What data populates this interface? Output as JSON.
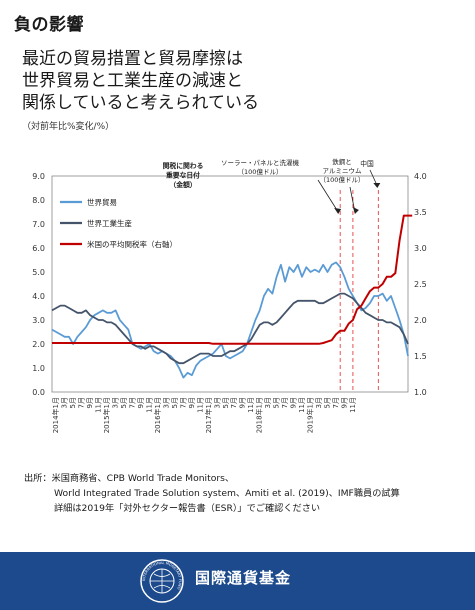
{
  "page": {
    "title": "負の影響",
    "headline": [
      "最近の貿易措置と貿易摩擦は",
      "世界貿易と工業生産の減速と",
      "関係していると考えられている"
    ],
    "unit_note": "（対前年比%変化/%）"
  },
  "source": {
    "lines": [
      "出所：米国商務省、CPB World Trade Monitors、",
      "World Integrated Trade Solution system、Amiti et al. (2019)、IMF職員の試算",
      "詳細は2019年「対外セクター報告書（ESR）」でご確認ください"
    ]
  },
  "footer": {
    "org_name": "国際通貨基金",
    "seal_text": "INTERNATIONAL MONETARY FUND"
  },
  "colors": {
    "trade": "#5b9bd5",
    "production": "#44546a",
    "tariff": "#c00000",
    "event_line": "#e34040",
    "footer_bg": "#1c4a8c"
  },
  "chart_data": {
    "type": "line",
    "x_ticks": [
      "2014年1月",
      "3月",
      "5月",
      "7月",
      "9月",
      "11月",
      "2015年1月",
      "3月",
      "5月",
      "7月",
      "9月",
      "11月",
      "2016年1月",
      "3月",
      "5月",
      "7月",
      "9月",
      "11月",
      "2017年1月",
      "3月",
      "5月",
      "7月",
      "9月",
      "11月",
      "2018年1月",
      "3月",
      "5月",
      "7月",
      "9月",
      "11月",
      "2019年1月",
      "3月",
      "5月",
      "7月",
      "9月",
      "11月"
    ],
    "y_left": {
      "min": 0.0,
      "max": 9.0,
      "ticks": [
        "0.0",
        "1.0",
        "2.0",
        "3.0",
        "4.0",
        "5.0",
        "6.0",
        "7.0",
        "8.0",
        "9.0"
      ]
    },
    "y_right": {
      "min": 1.0,
      "max": 4.0,
      "ticks": [
        "1.0",
        "1.5",
        "2.0",
        "2.5",
        "3.0",
        "3.5",
        "4.0"
      ]
    },
    "grid": false,
    "legend_position": "top-left",
    "series": [
      {
        "name": "世界貿易",
        "axis": "left",
        "color": "#5b9bd5",
        "values": [
          2.6,
          2.5,
          2.4,
          2.3,
          2.3,
          2.0,
          2.3,
          2.5,
          2.7,
          3.0,
          3.2,
          3.3,
          3.4,
          3.3,
          3.3,
          3.4,
          3.0,
          2.8,
          2.6,
          2.0,
          1.9,
          1.8,
          1.9,
          2.0,
          1.7,
          1.6,
          1.7,
          1.6,
          1.5,
          1.3,
          1.0,
          0.6,
          0.8,
          0.7,
          1.1,
          1.3,
          1.4,
          1.5,
          1.6,
          1.8,
          2.0,
          1.5,
          1.4,
          1.5,
          1.6,
          1.7,
          2.0,
          2.5,
          3.0,
          3.4,
          4.0,
          4.3,
          4.1,
          4.8,
          5.3,
          4.6,
          5.2,
          5.0,
          5.3,
          4.8,
          5.2,
          5.0,
          5.1,
          5.0,
          5.3,
          5.0,
          5.3,
          5.4,
          5.2,
          4.8,
          4.3,
          4.0,
          3.7,
          3.4,
          3.5,
          3.7,
          4.0,
          4.0,
          4.1,
          3.8,
          4.0,
          3.5,
          3.0,
          2.4,
          1.5
        ]
      },
      {
        "name": "世界工業生産",
        "axis": "left",
        "color": "#44546a",
        "values": [
          3.4,
          3.5,
          3.6,
          3.6,
          3.5,
          3.4,
          3.3,
          3.3,
          3.4,
          3.2,
          3.1,
          3.0,
          3.0,
          2.9,
          2.9,
          2.8,
          2.6,
          2.4,
          2.2,
          2.0,
          1.9,
          1.9,
          1.8,
          1.9,
          1.9,
          1.8,
          1.7,
          1.6,
          1.4,
          1.3,
          1.2,
          1.2,
          1.3,
          1.4,
          1.5,
          1.6,
          1.6,
          1.6,
          1.5,
          1.5,
          1.5,
          1.6,
          1.7,
          1.7,
          1.8,
          1.9,
          2.0,
          2.2,
          2.5,
          2.8,
          2.9,
          2.9,
          2.8,
          2.9,
          3.1,
          3.3,
          3.5,
          3.7,
          3.8,
          3.8,
          3.8,
          3.8,
          3.8,
          3.7,
          3.7,
          3.8,
          3.9,
          4.0,
          4.1,
          4.1,
          4.0,
          3.9,
          3.7,
          3.5,
          3.3,
          3.2,
          3.1,
          3.0,
          3.0,
          2.9,
          2.9,
          2.8,
          2.7,
          2.4,
          2.0
        ]
      },
      {
        "name": "米国の平均関税率（右軸）",
        "axis": "right",
        "color": "#c00000",
        "values": [
          1.68,
          1.68,
          1.68,
          1.68,
          1.68,
          1.68,
          1.68,
          1.68,
          1.68,
          1.68,
          1.68,
          1.68,
          1.68,
          1.68,
          1.68,
          1.68,
          1.68,
          1.68,
          1.68,
          1.68,
          1.68,
          1.68,
          1.68,
          1.68,
          1.68,
          1.68,
          1.68,
          1.68,
          1.68,
          1.68,
          1.68,
          1.68,
          1.68,
          1.68,
          1.68,
          1.68,
          1.68,
          1.68,
          1.67,
          1.67,
          1.67,
          1.67,
          1.67,
          1.67,
          1.67,
          1.67,
          1.67,
          1.67,
          1.67,
          1.67,
          1.67,
          1.67,
          1.67,
          1.67,
          1.67,
          1.67,
          1.67,
          1.67,
          1.67,
          1.67,
          1.67,
          1.67,
          1.67,
          1.67,
          1.68,
          1.7,
          1.72,
          1.8,
          1.85,
          1.85,
          1.95,
          2.0,
          2.15,
          2.2,
          2.3,
          2.4,
          2.45,
          2.45,
          2.5,
          2.6,
          2.6,
          2.65,
          3.1,
          3.45,
          3.45,
          3.45
        ]
      }
    ],
    "events": [
      {
        "label": "ソーラーパネルと洗濯機（100億ドル）",
        "label_lines": [
          "ソーラー・パネルと洗濯機",
          "（100億ドル）"
        ],
        "index": 68
      },
      {
        "label": "鉄鋼とアルミニウム（100億ドル）",
        "label_lines": [
          "鉄鋼と",
          "アルミニウム",
          "（100億ドル）"
        ],
        "index": 71
      },
      {
        "label": "中国",
        "label_lines": [
          "中国"
        ],
        "index": 77
      }
    ],
    "annotation_box": [
      "関税に関わる",
      "重要な日付",
      "（金額）"
    ]
  }
}
